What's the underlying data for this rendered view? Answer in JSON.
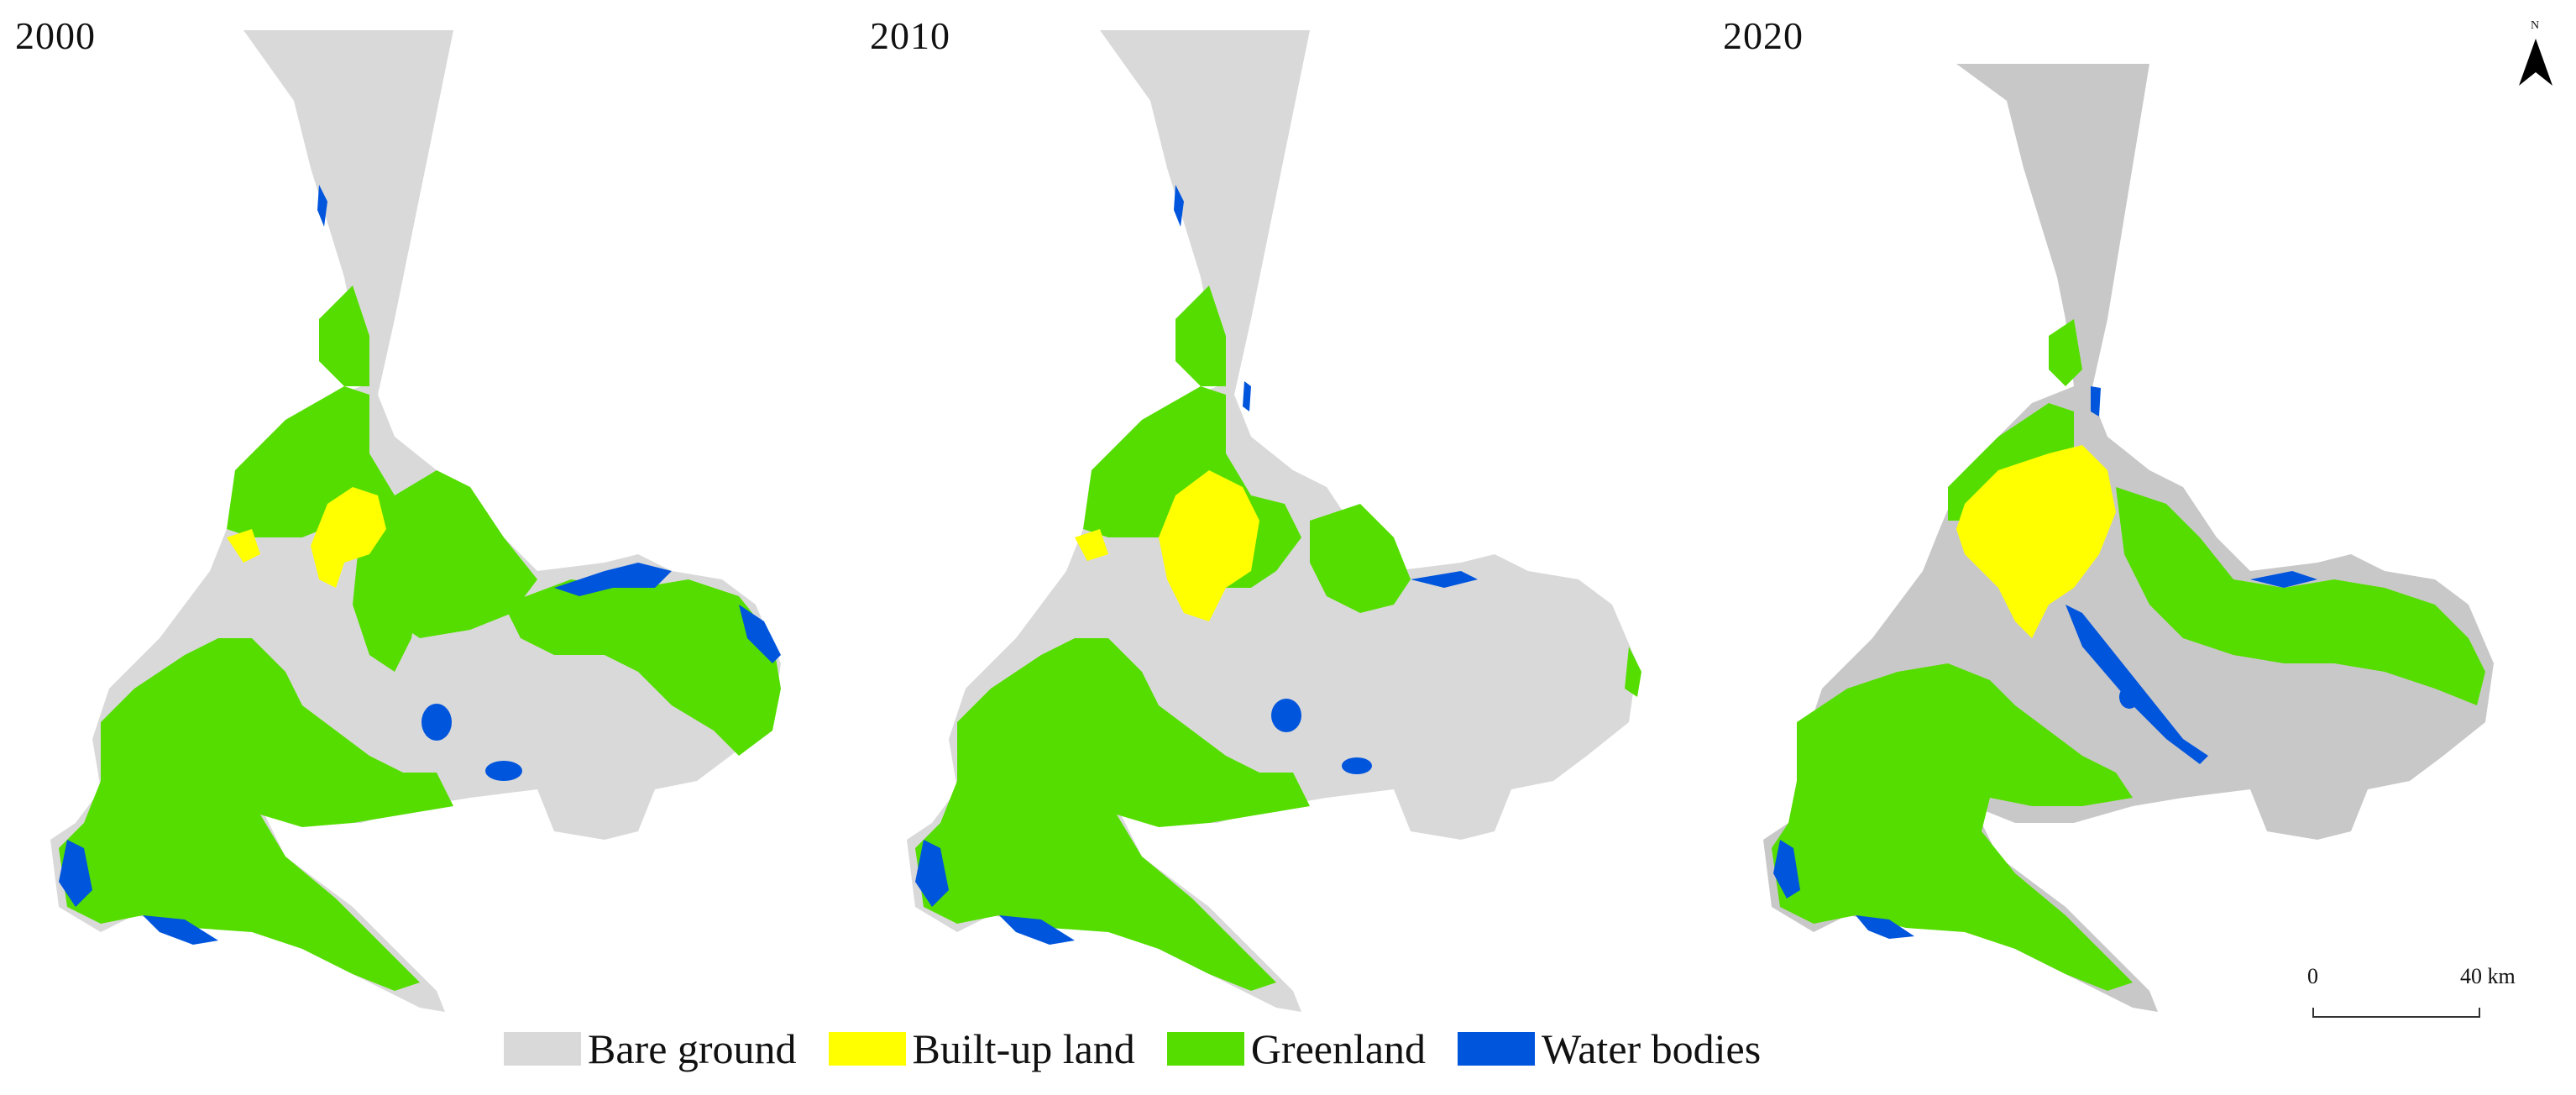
{
  "years": [
    "2000",
    "2010",
    "2020"
  ],
  "legend": [
    {
      "label": "Bare ground",
      "color": "#d9d9d9"
    },
    {
      "label": "Built-up land",
      "color": "#ffff00"
    },
    {
      "label": "Greenland",
      "color": "#55dd00"
    },
    {
      "label": "Water bodies",
      "color": "#0055dd"
    }
  ],
  "scale": {
    "start": "0",
    "end": "40 km"
  },
  "north": {
    "letter": "N"
  }
}
